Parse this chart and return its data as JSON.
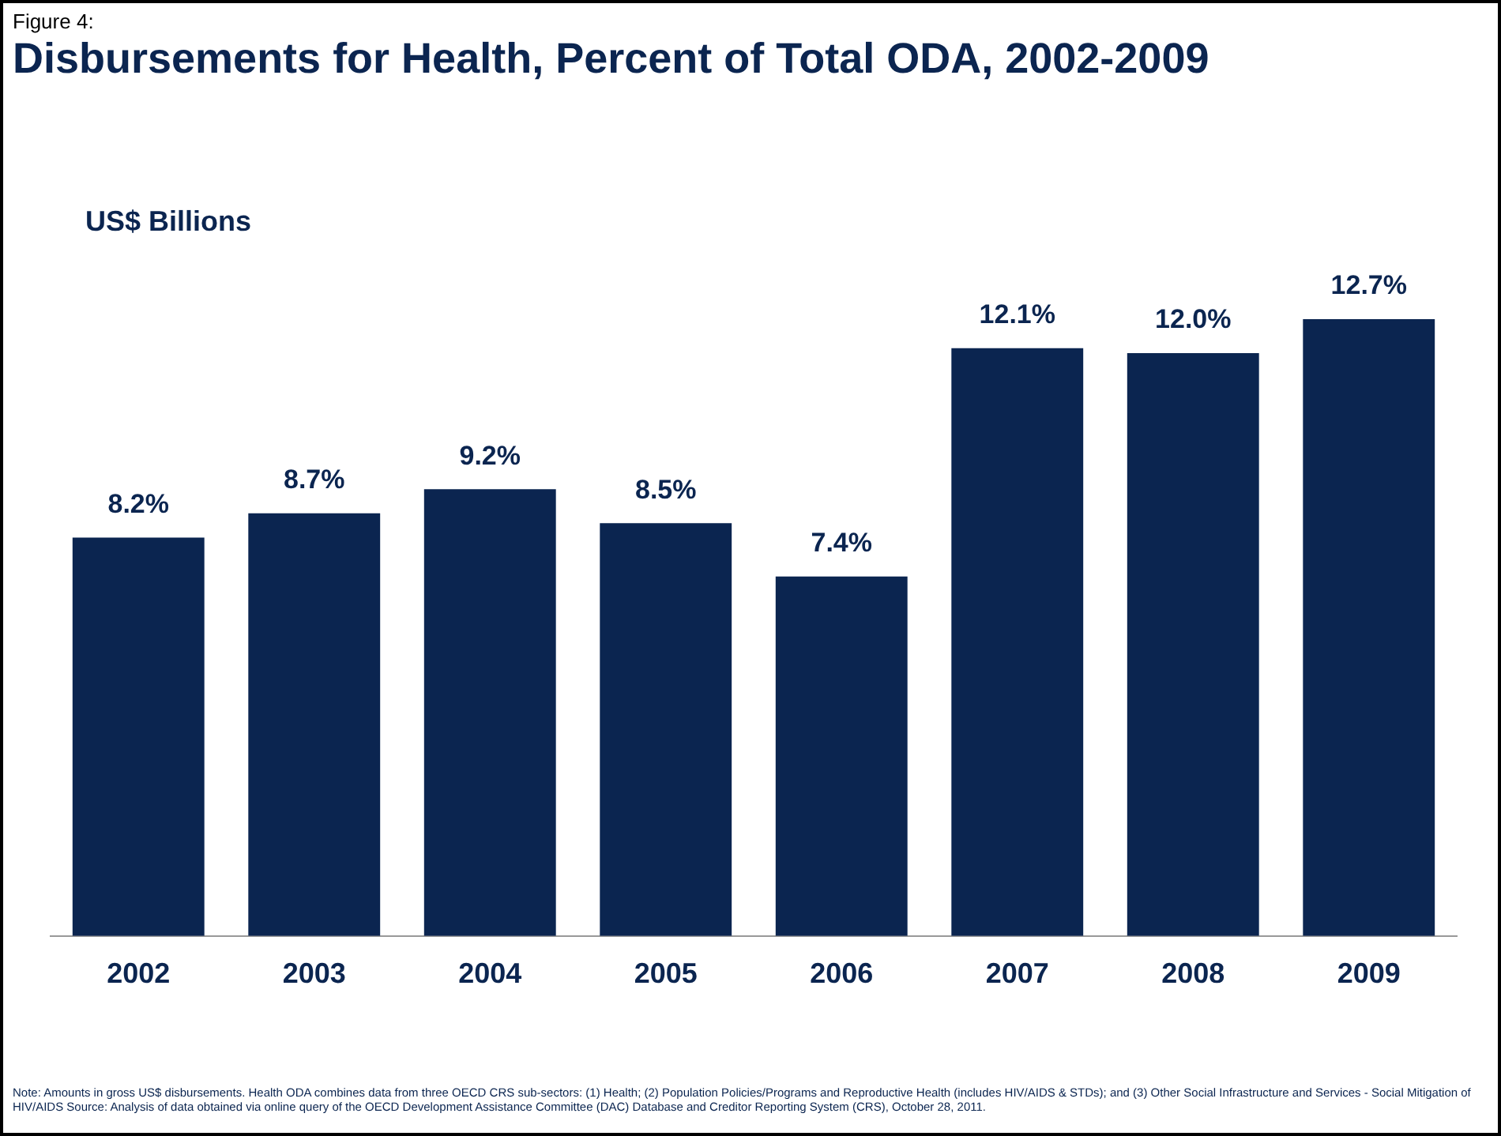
{
  "chart_data": {
    "type": "bar",
    "subtitle": "Figure 4:",
    "title": "Disbursements for Health, Percent of Total ODA, 2002-2009",
    "ylabel": "US$ Billions",
    "categories": [
      "2002",
      "2003",
      "2004",
      "2005",
      "2006",
      "2007",
      "2008",
      "2009"
    ],
    "values": [
      8.2,
      8.7,
      9.2,
      8.5,
      7.4,
      12.1,
      12.0,
      12.7
    ],
    "value_labels": [
      "8.2%",
      "8.7%",
      "9.2%",
      "8.5%",
      "7.4%",
      "12.1%",
      "12.0%",
      "12.7%"
    ],
    "color": "#0b2550",
    "grid": false,
    "legend": false,
    "tick_labels": "x",
    "annotations": [
      "Note: Amounts in gross US$ disbursements. Health ODA combines data from three OECD CRS sub-sectors: (1) Health; (2) Population Policies/Programs and Reproductive Health (includes HIV/AIDS & STDs); and (3) Other Social Infrastructure and Services - Social Mitigation of HIV/AIDS Source: Analysis of data obtained via online query of the OECD Development Assistance Committee (DAC) Database and Creditor Reporting System (CRS), October 28, 2011."
    ]
  }
}
